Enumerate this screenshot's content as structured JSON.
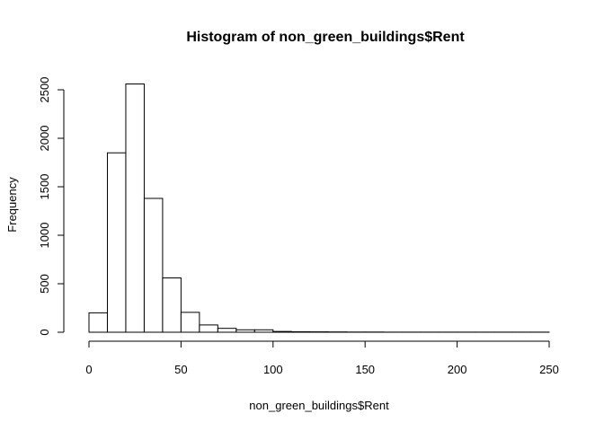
{
  "chart_data": {
    "type": "bar",
    "title": "Histogram of non_green_buildings$Rent",
    "xlabel": "non_green_buildings$Rent",
    "ylabel": "Frequency",
    "bin_edges": [
      0,
      10,
      20,
      30,
      40,
      50,
      60,
      70,
      80,
      90,
      100,
      110,
      120,
      130,
      140,
      150,
      160,
      170,
      180,
      190,
      200,
      210,
      220,
      230,
      240,
      250
    ],
    "values": [
      200,
      1850,
      2560,
      1380,
      560,
      205,
      75,
      40,
      25,
      25,
      8,
      5,
      4,
      3,
      2,
      2,
      1,
      1,
      1,
      1,
      1,
      1,
      1,
      1,
      1
    ],
    "xlim": [
      0,
      250
    ],
    "ylim": [
      0,
      2500
    ],
    "xticks": [
      0,
      50,
      100,
      150,
      200,
      250
    ],
    "yticks": [
      0,
      500,
      1000,
      1500,
      2000,
      2500
    ],
    "grid": false,
    "colors": {
      "bar_fill": "#ffffff",
      "bar_stroke": "#000000"
    }
  }
}
